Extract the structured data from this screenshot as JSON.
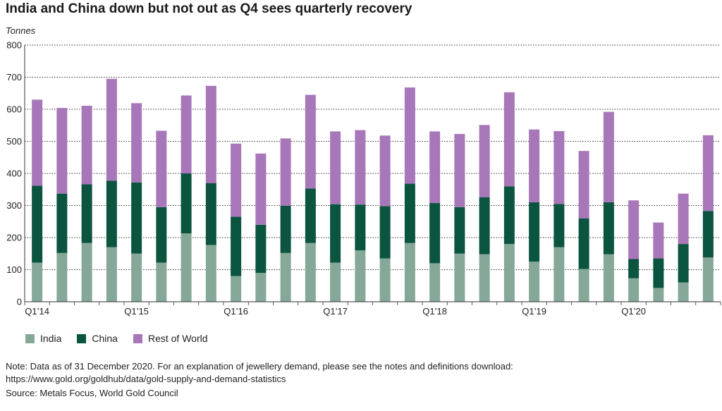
{
  "title": "India and China down but not out as Q4 sees quarterly recovery",
  "chart_data": {
    "type": "bar",
    "stacked": true,
    "unit_label": "Tonnes",
    "ylim": [
      0,
      800
    ],
    "y_ticks": [
      0,
      100,
      200,
      300,
      400,
      500,
      600,
      700,
      800
    ],
    "grid": true,
    "legend_position": "bottom-left",
    "categories": [
      "Q1'14",
      "Q2'14",
      "Q3'14",
      "Q4'14",
      "Q1'15",
      "Q2'15",
      "Q3'15",
      "Q4'15",
      "Q1'16",
      "Q2'16",
      "Q3'16",
      "Q4'16",
      "Q1'17",
      "Q2'17",
      "Q3'17",
      "Q4'17",
      "Q1'18",
      "Q2'18",
      "Q3'18",
      "Q4'18",
      "Q1'19",
      "Q2'19",
      "Q3'19",
      "Q4'19",
      "Q1'20",
      "Q2'20",
      "Q3'20",
      "Q4'20"
    ],
    "x_tick_labels": [
      "Q1’14",
      "",
      "",
      "",
      "Q1’15",
      "",
      "",
      "",
      "Q1’16",
      "",
      "",
      "",
      "Q1’17",
      "",
      "",
      "",
      "Q1’18",
      "",
      "",
      "",
      "Q1’19",
      "",
      "",
      "",
      "Q1’20",
      "",
      "",
      ""
    ],
    "series": [
      {
        "name": "India",
        "color": "#86a898",
        "values": [
          122,
          152,
          183,
          170,
          150,
          122,
          213,
          177,
          80,
          90,
          152,
          183,
          122,
          160,
          135,
          183,
          120,
          150,
          148,
          180,
          125,
          170,
          102,
          148,
          73,
          43,
          60,
          138
        ]
      },
      {
        "name": "China",
        "color": "#0b5440",
        "values": [
          240,
          185,
          183,
          207,
          222,
          173,
          187,
          193,
          185,
          150,
          147,
          170,
          182,
          143,
          163,
          185,
          188,
          145,
          178,
          180,
          185,
          135,
          158,
          162,
          60,
          92,
          120,
          145
        ]
      },
      {
        "name": "Rest of World",
        "color": "#a877b9",
        "values": [
          268,
          267,
          245,
          318,
          247,
          238,
          243,
          303,
          228,
          222,
          210,
          292,
          227,
          232,
          220,
          300,
          223,
          228,
          225,
          293,
          227,
          227,
          210,
          282,
          183,
          112,
          157,
          236
        ]
      }
    ]
  },
  "note": "Note: Data as of 31 December 2020. For an explanation of jewellery demand, please see the notes and definitions download:",
  "note_url": "https://www.gold.org/goldhub/data/gold-supply-and-demand-statistics",
  "source": "Source: Metals Focus, World Gold Council"
}
